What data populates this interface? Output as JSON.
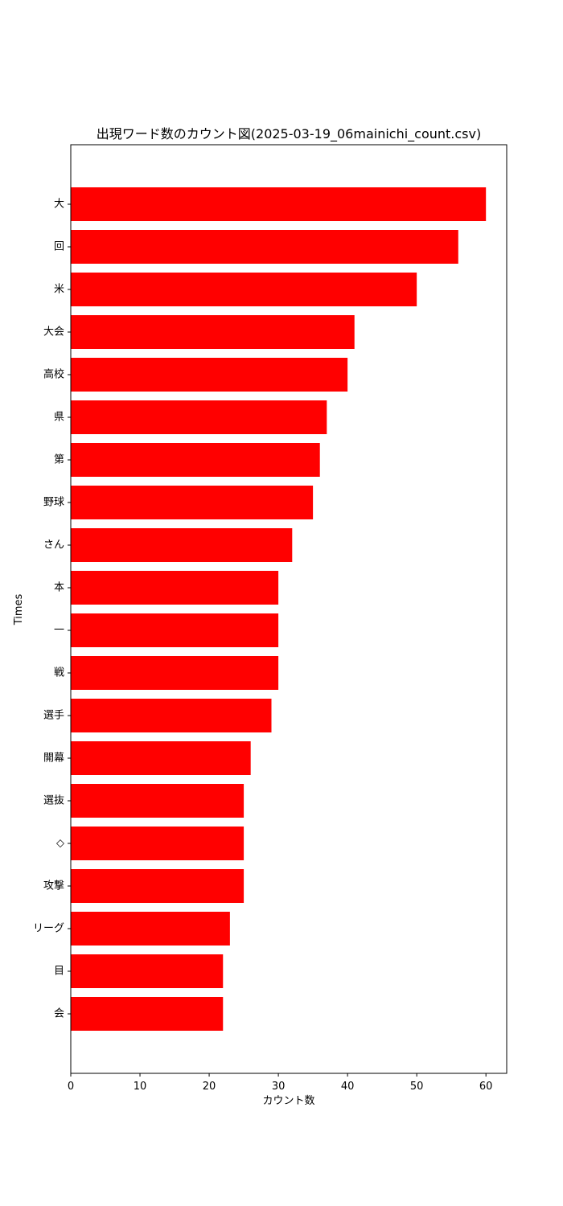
{
  "chart_data": {
    "type": "bar",
    "orientation": "horizontal",
    "title": "出現ワード数のカウント図(2025-03-19_06mainichi_count.csv)",
    "xlabel": "カウント数",
    "ylabel": "Times",
    "xlim": [
      0,
      63
    ],
    "xticks": [
      0,
      10,
      20,
      30,
      40,
      50,
      60
    ],
    "grid": false,
    "bar_color": "#ff0000",
    "categories": [
      "大",
      "回",
      "米",
      "大会",
      "高校",
      "県",
      "第",
      "野球",
      "さん",
      "本",
      "一",
      "戦",
      "選手",
      "開幕",
      "選抜",
      "◇",
      "攻撃",
      "リーグ",
      "目",
      "会"
    ],
    "values": [
      60,
      56,
      50,
      41,
      40,
      37,
      36,
      35,
      32,
      30,
      30,
      30,
      29,
      26,
      25,
      25,
      25,
      23,
      22,
      22
    ]
  }
}
